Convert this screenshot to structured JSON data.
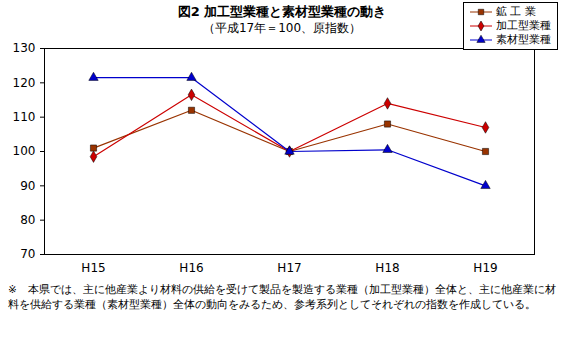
{
  "chart_data": {
    "type": "line",
    "title": "図2 加工型業種と素材型業種の動き",
    "subtitle": "（平成17年＝100、原指数）",
    "categories": [
      "H15",
      "H16",
      "H17",
      "H18",
      "H19"
    ],
    "series": [
      {
        "name": "鉱 工 業",
        "color": "#993300",
        "marker": "square",
        "values": [
          101,
          112,
          100,
          108,
          100
        ]
      },
      {
        "name": "加工型業種",
        "color": "#cc0000",
        "marker": "diamond",
        "values": [
          98.5,
          116.5,
          100,
          114,
          107
        ]
      },
      {
        "name": "素材型業種",
        "color": "#0000cc",
        "marker": "triangle",
        "values": [
          121.5,
          121.5,
          100,
          100.5,
          90
        ]
      }
    ],
    "ylim": [
      70,
      130
    ],
    "yticks": [
      70,
      80,
      90,
      100,
      110,
      120,
      130
    ],
    "grid": false,
    "legend": "top-right",
    "annotations": [
      "※　本県では、主に他産業より材料の供給を受けて製品を製造する業種（加工型業種）全体と、主に他産業に材料を供給する業種（素材型業種）全体の動向をみるため、参考系列としてそれぞれの指数を作成している。"
    ]
  }
}
